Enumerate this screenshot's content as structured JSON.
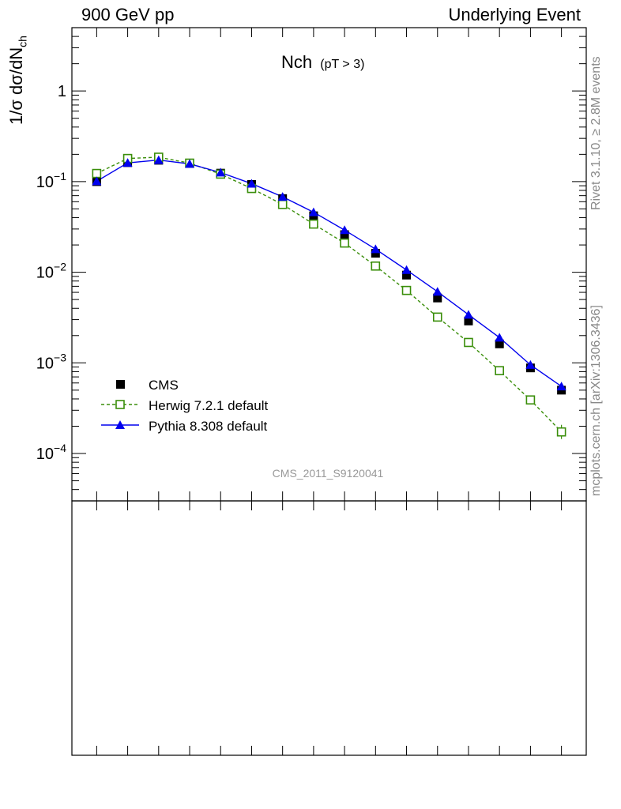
{
  "header": {
    "left": "900 GeV pp",
    "right": "Underlying Event"
  },
  "side_text": {
    "rivet": "Rivet 3.1.10, ≥ 2.8M events",
    "mcplots": "mcplots.cern.ch [arXiv:1306.3436]"
  },
  "plot_title": {
    "main": "Nch",
    "sub": "(pT >  3)"
  },
  "watermark": "CMS_2011_S9120041",
  "axis": {
    "ylabel_main": "1/σ dσ/dN",
    "ylabel_sub": "ch",
    "y_tick_labels": [
      {
        "value": 0.0001,
        "base": "10",
        "exp": "−4"
      },
      {
        "value": 0.001,
        "base": "10",
        "exp": "−3"
      },
      {
        "value": 0.01,
        "base": "10",
        "exp": "−2"
      },
      {
        "value": 0.1,
        "base": "10",
        "exp": "−1"
      },
      {
        "value": 1,
        "base": "1",
        "exp": ""
      }
    ]
  },
  "chart_data": {
    "type": "line",
    "yscale": "log",
    "ylim": [
      3e-05,
      5
    ],
    "xlim": [
      -0.8,
      15.8
    ],
    "x": [
      0,
      1,
      2,
      3,
      4,
      5,
      6,
      7,
      8,
      9,
      10,
      11,
      12,
      13,
      14,
      15
    ],
    "series": [
      {
        "name": "CMS",
        "style": "markers",
        "marker": "filled-square",
        "color": "#000000",
        "values": [
          0.1,
          0.162,
          0.172,
          0.159,
          0.124,
          0.093,
          0.065,
          0.042,
          0.026,
          0.0162,
          0.0093,
          0.0052,
          0.0029,
          0.00162,
          0.00088,
          0.0005
        ]
      },
      {
        "name": "Herwig 7.2.1 default",
        "style": "dashed-line",
        "marker": "open-square",
        "color": "#3a8e0a",
        "values": [
          0.123,
          0.18,
          0.186,
          0.16,
          0.121,
          0.084,
          0.056,
          0.034,
          0.021,
          0.0117,
          0.0063,
          0.0032,
          0.00168,
          0.00082,
          0.00039,
          0.000173
        ]
      },
      {
        "name": "Pythia 8.308 default",
        "style": "solid-line",
        "marker": "filled-triangle",
        "color": "#0000ee",
        "values": [
          0.101,
          0.161,
          0.173,
          0.157,
          0.126,
          0.095,
          0.068,
          0.046,
          0.0292,
          0.018,
          0.0106,
          0.0061,
          0.0034,
          0.0019,
          0.00095,
          0.00055
        ]
      }
    ]
  },
  "legend": {
    "placement": "lower-left",
    "entries": [
      "CMS",
      "Herwig 7.2.1 default",
      "Pythia 8.308 default"
    ]
  }
}
